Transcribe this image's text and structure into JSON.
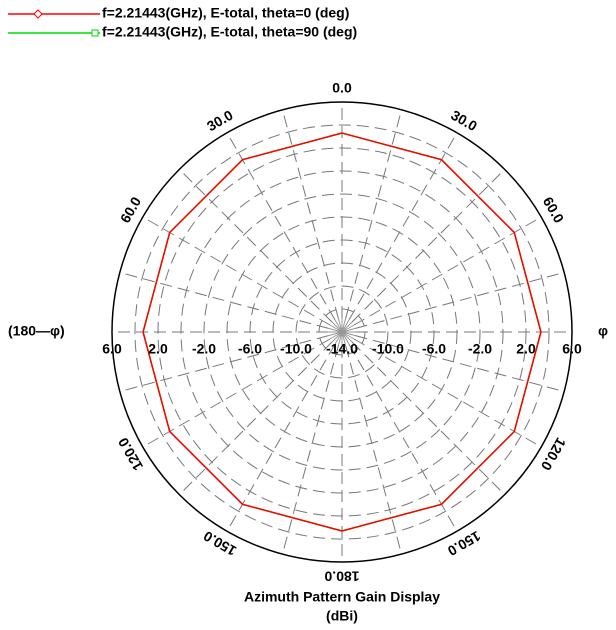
{
  "chart_data": {
    "type": "polar",
    "title": "Azimuth Pattern Gain Display",
    "subtitle": "(dBi)",
    "left_label": "(180—φ)",
    "right_label": "φ",
    "rlim": [
      -14,
      6
    ],
    "rticks": [
      {
        "value": -14,
        "label": "-14.0"
      },
      {
        "value": -10,
        "label": "-10.0"
      },
      {
        "value": -6,
        "label": "-6.0"
      },
      {
        "value": -2,
        "label": "-2.0"
      },
      {
        "value": 2,
        "label": "2.0"
      },
      {
        "value": 6,
        "label": "6.0"
      }
    ],
    "rgrid": [
      -12,
      -10,
      -8,
      -6,
      -4,
      -2,
      0,
      2,
      4
    ],
    "angle_ticks": [
      {
        "value": 0,
        "label": "0.0"
      },
      {
        "value": 30,
        "label": "30.0"
      },
      {
        "value": 60,
        "label": "60.0"
      },
      {
        "value": 120,
        "label": "120.0"
      },
      {
        "value": 150,
        "label": "150.0"
      },
      {
        "value": 180,
        "label": "180.0"
      }
    ],
    "angle_grid": [
      0,
      15,
      30,
      45,
      60,
      75,
      90,
      105,
      120,
      135,
      150,
      165,
      180,
      195,
      210,
      225,
      240,
      255,
      270,
      285,
      300,
      315,
      330,
      345
    ],
    "phi": [
      0,
      30,
      60,
      90,
      120,
      150,
      180,
      210,
      240,
      270,
      300,
      330
    ],
    "series": [
      {
        "name": "f=2.21443(GHz), E-total, theta=0 (deg)",
        "color": "#ff0000",
        "marker": "diamond",
        "values": [
          3.3,
          3.3,
          3.3,
          3.3,
          3.3,
          3.3,
          3.3,
          3.3,
          3.3,
          3.3,
          3.3,
          3.3
        ]
      },
      {
        "name": "f=2.21443(GHz), E-total, theta=90 (deg)",
        "color": "#00dd00",
        "marker": "square",
        "values": [
          3.3,
          3.3,
          3.3,
          3.3,
          3.3,
          3.3,
          3.3,
          3.3,
          3.3,
          3.3,
          3.3,
          3.3
        ]
      }
    ]
  }
}
